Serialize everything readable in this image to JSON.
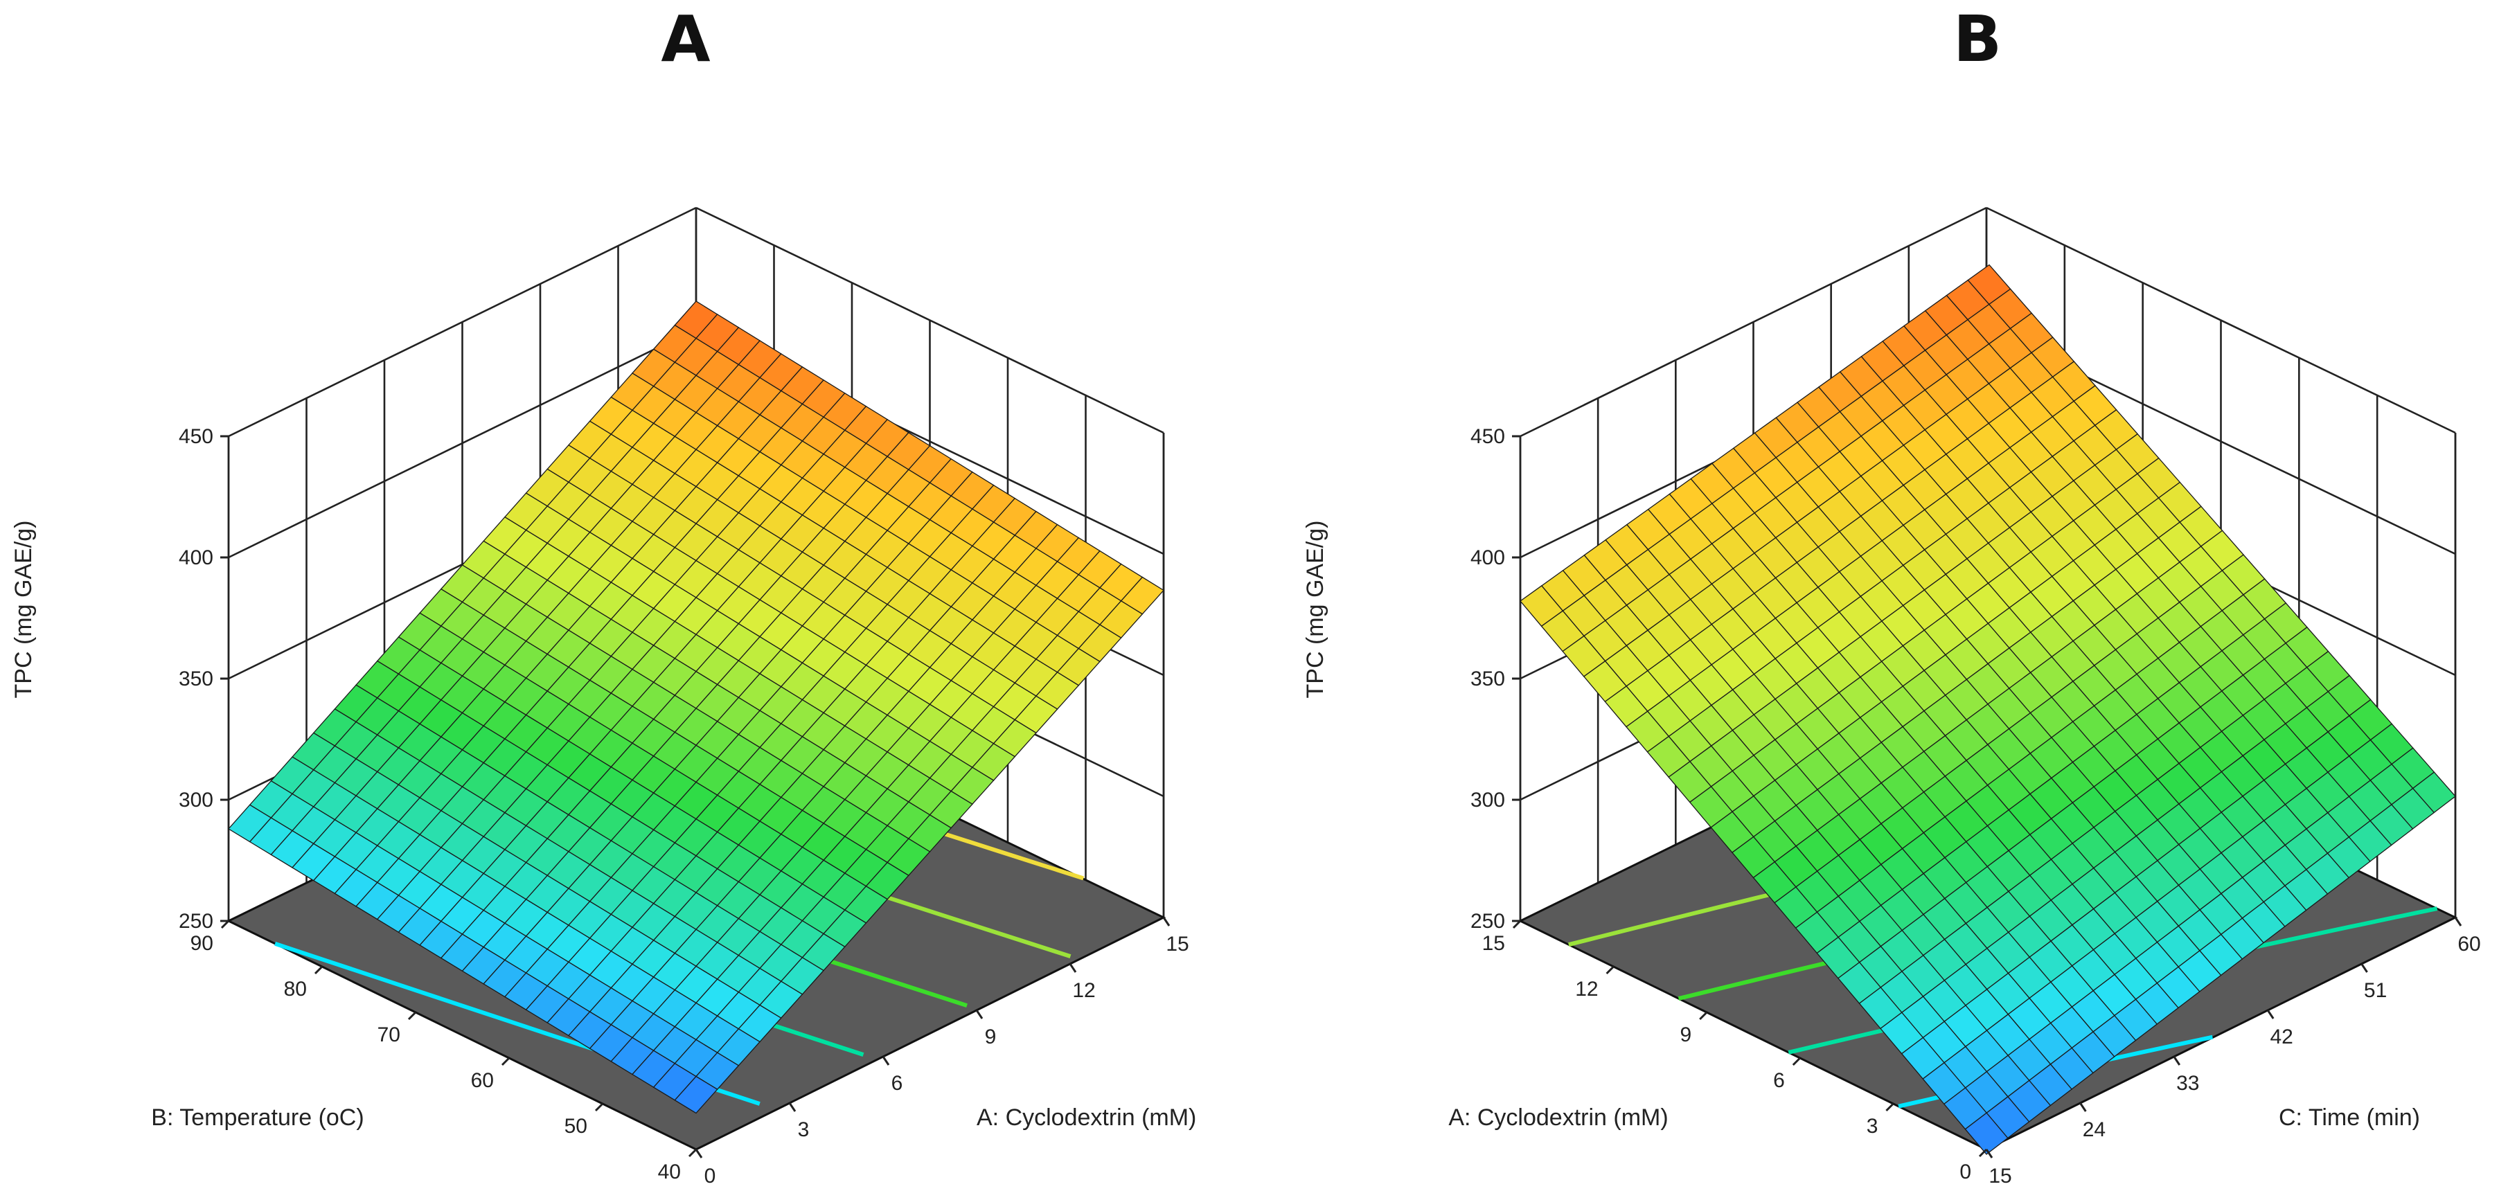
{
  "chart_data": [
    {
      "type": "surface3d",
      "panel": "A",
      "z_label": "TPC (mg GAE/g)",
      "zlim": [
        250,
        450
      ],
      "z_ticks": [
        "250",
        "300",
        "350",
        "400",
        "450"
      ],
      "x_label": "A: Cyclodextrin (mM)",
      "x_range": [
        0,
        15
      ],
      "x_ticks": [
        "0",
        "3",
        "6",
        "9",
        "12",
        "15"
      ],
      "y_label": "B: Temperature (oC)",
      "y_range": [
        40,
        90
      ],
      "y_ticks": [
        "40",
        "50",
        "60",
        "70",
        "80",
        "90"
      ],
      "surface_corners": {
        "x_min_y_max": 288,
        "x_min_y_min": 265,
        "x_max_y_min": 385,
        "x_max_y_max": 410
      },
      "contour_lines": [
        {
          "color": "#00e5ff",
          "label": "cyan"
        },
        {
          "color": "#00e0a0",
          "label": "teal"
        },
        {
          "color": "#3cdc2a",
          "label": "green"
        },
        {
          "color": "#9be23a",
          "label": "lime"
        },
        {
          "color": "#f0dc3c",
          "label": "yellow"
        }
      ]
    },
    {
      "type": "surface3d",
      "panel": "B",
      "z_label": "TPC (mg GAE/g)",
      "zlim": [
        250,
        450
      ],
      "z_ticks": [
        "250",
        "300",
        "350",
        "400",
        "450"
      ],
      "x_label": "C: Time (min)",
      "x_range": [
        15,
        60
      ],
      "x_ticks": [
        "15",
        "24",
        "33",
        "42",
        "51",
        "60"
      ],
      "y_label": "A: Cyclodextrin (mM)",
      "y_range": [
        0,
        15
      ],
      "y_ticks": [
        "0",
        "3",
        "6",
        "9",
        "12",
        "15"
      ],
      "surface_corners": {
        "x_min_y_max": 382,
        "x_min_y_min": 248,
        "x_max_y_min": 300,
        "x_max_y_max": 425
      },
      "contour_lines": [
        {
          "color": "#00e5ff",
          "label": "cyan"
        },
        {
          "color": "#00e0a0",
          "label": "teal"
        },
        {
          "color": "#3cdc2a",
          "label": "green"
        },
        {
          "color": "#9be23a",
          "label": "lime"
        },
        {
          "color": "#f0dc3c",
          "label": "yellow"
        }
      ]
    }
  ]
}
